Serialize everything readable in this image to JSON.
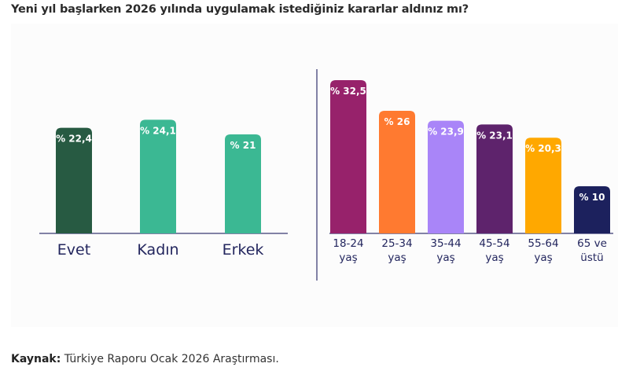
{
  "title": "Yeni yıl başlarken 2026 yılında uygulamak istediğiniz kararlar aldınız mı?",
  "footer": {
    "label": "Kaynak:",
    "text": "Türkiye Raporu Ocak 2026 Araştırması."
  },
  "chart_data": [
    {
      "type": "bar",
      "title": "",
      "categories": [
        "Evet",
        "Kadın",
        "Erkek"
      ],
      "values": [
        22.4,
        24.1,
        21
      ],
      "labels": [
        "% 22,4",
        "% 24,1",
        "% 21"
      ],
      "colors": [
        "#275a42",
        "#3bb893",
        "#3bb893"
      ],
      "ylim": [
        0,
        35
      ],
      "grid": false
    },
    {
      "type": "bar",
      "title": "",
      "categories": [
        [
          "18-24",
          "yaş"
        ],
        [
          "25-34",
          "yaş"
        ],
        [
          "35-44",
          "yaş"
        ],
        [
          "45-54",
          "yaş"
        ],
        [
          "55-64",
          "yaş"
        ],
        [
          "65 ve",
          "üstü"
        ]
      ],
      "values": [
        32.5,
        26,
        23.9,
        23.1,
        20.3,
        10
      ],
      "labels": [
        "% 32,5",
        "% 26",
        "% 23,9",
        "% 23,1",
        "% 20,3",
        "% 10"
      ],
      "colors": [
        "#97226b",
        "#ff7a30",
        "#a985f8",
        "#5e236c",
        "#ffa800",
        "#1c215d"
      ],
      "ylim": [
        0,
        35
      ],
      "grid": false
    }
  ],
  "colors": {
    "axis": "#5a5a8a",
    "label": "#23265e"
  }
}
